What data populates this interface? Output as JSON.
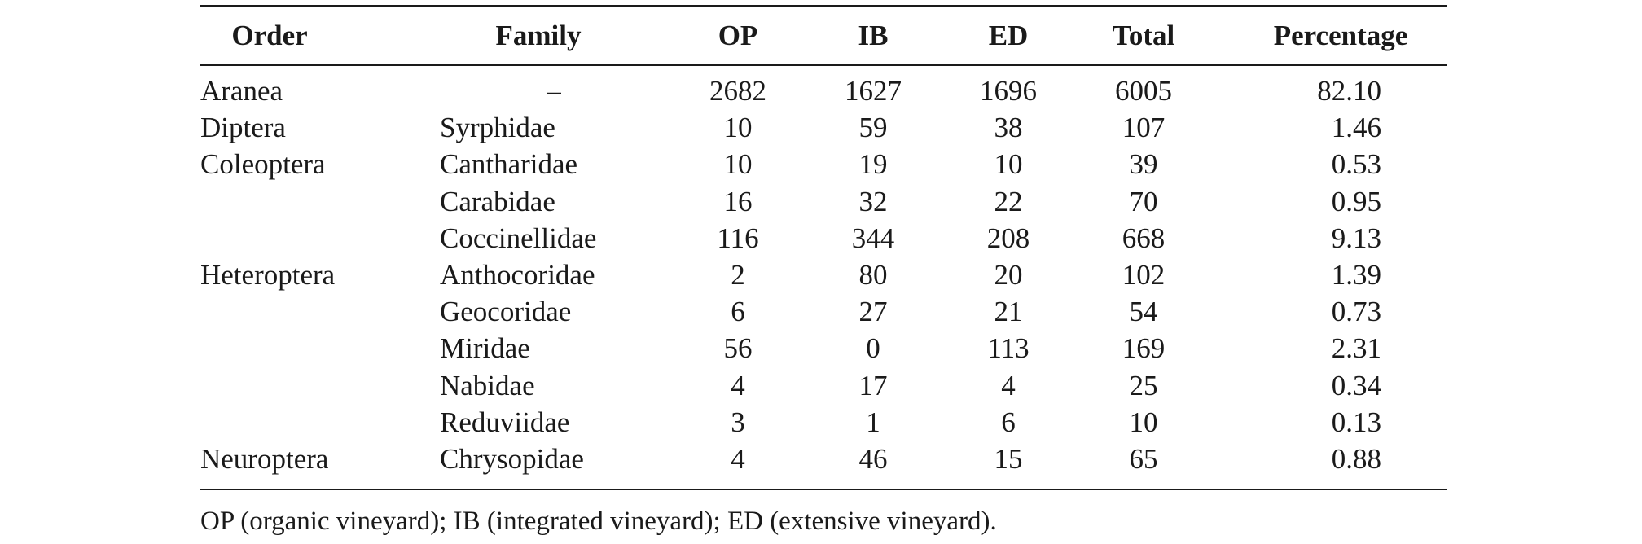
{
  "table": {
    "headers": {
      "order": "Order",
      "family": "Family",
      "op": "OP",
      "ib": "IB",
      "ed": "ED",
      "total": "Total",
      "percentage": "Percentage"
    },
    "rows": [
      {
        "order": "Aranea",
        "family": "–",
        "op": "2682",
        "ib": "1627",
        "ed": "1696",
        "total": "6005",
        "percentage": "82.10"
      },
      {
        "order": "Diptera",
        "family": "Syrphidae",
        "op": "10",
        "ib": "59",
        "ed": "38",
        "total": "107",
        "percentage": "1.46"
      },
      {
        "order": "Coleoptera",
        "family": "Cantharidae",
        "op": "10",
        "ib": "19",
        "ed": "10",
        "total": "39",
        "percentage": "0.53"
      },
      {
        "order": "",
        "family": "Carabidae",
        "op": "16",
        "ib": "32",
        "ed": "22",
        "total": "70",
        "percentage": "0.95"
      },
      {
        "order": "",
        "family": "Coccinellidae",
        "op": "116",
        "ib": "344",
        "ed": "208",
        "total": "668",
        "percentage": "9.13"
      },
      {
        "order": "Heteroptera",
        "family": "Anthocoridae",
        "op": "2",
        "ib": "80",
        "ed": "20",
        "total": "102",
        "percentage": "1.39"
      },
      {
        "order": "",
        "family": "Geocoridae",
        "op": "6",
        "ib": "27",
        "ed": "21",
        "total": "54",
        "percentage": "0.73"
      },
      {
        "order": "",
        "family": "Miridae",
        "op": "56",
        "ib": "0",
        "ed": "113",
        "total": "169",
        "percentage": "2.31"
      },
      {
        "order": "",
        "family": "Nabidae",
        "op": "4",
        "ib": "17",
        "ed": "4",
        "total": "25",
        "percentage": "0.34"
      },
      {
        "order": "",
        "family": "Reduviidae",
        "op": "3",
        "ib": "1",
        "ed": "6",
        "total": "10",
        "percentage": "0.13"
      },
      {
        "order": "Neuroptera",
        "family": "Chrysopidae",
        "op": "4",
        "ib": "46",
        "ed": "15",
        "total": "65",
        "percentage": "0.88"
      }
    ]
  },
  "footnote": "OP (organic vineyard); IB (integrated vineyard); ED (extensive vineyard)."
}
